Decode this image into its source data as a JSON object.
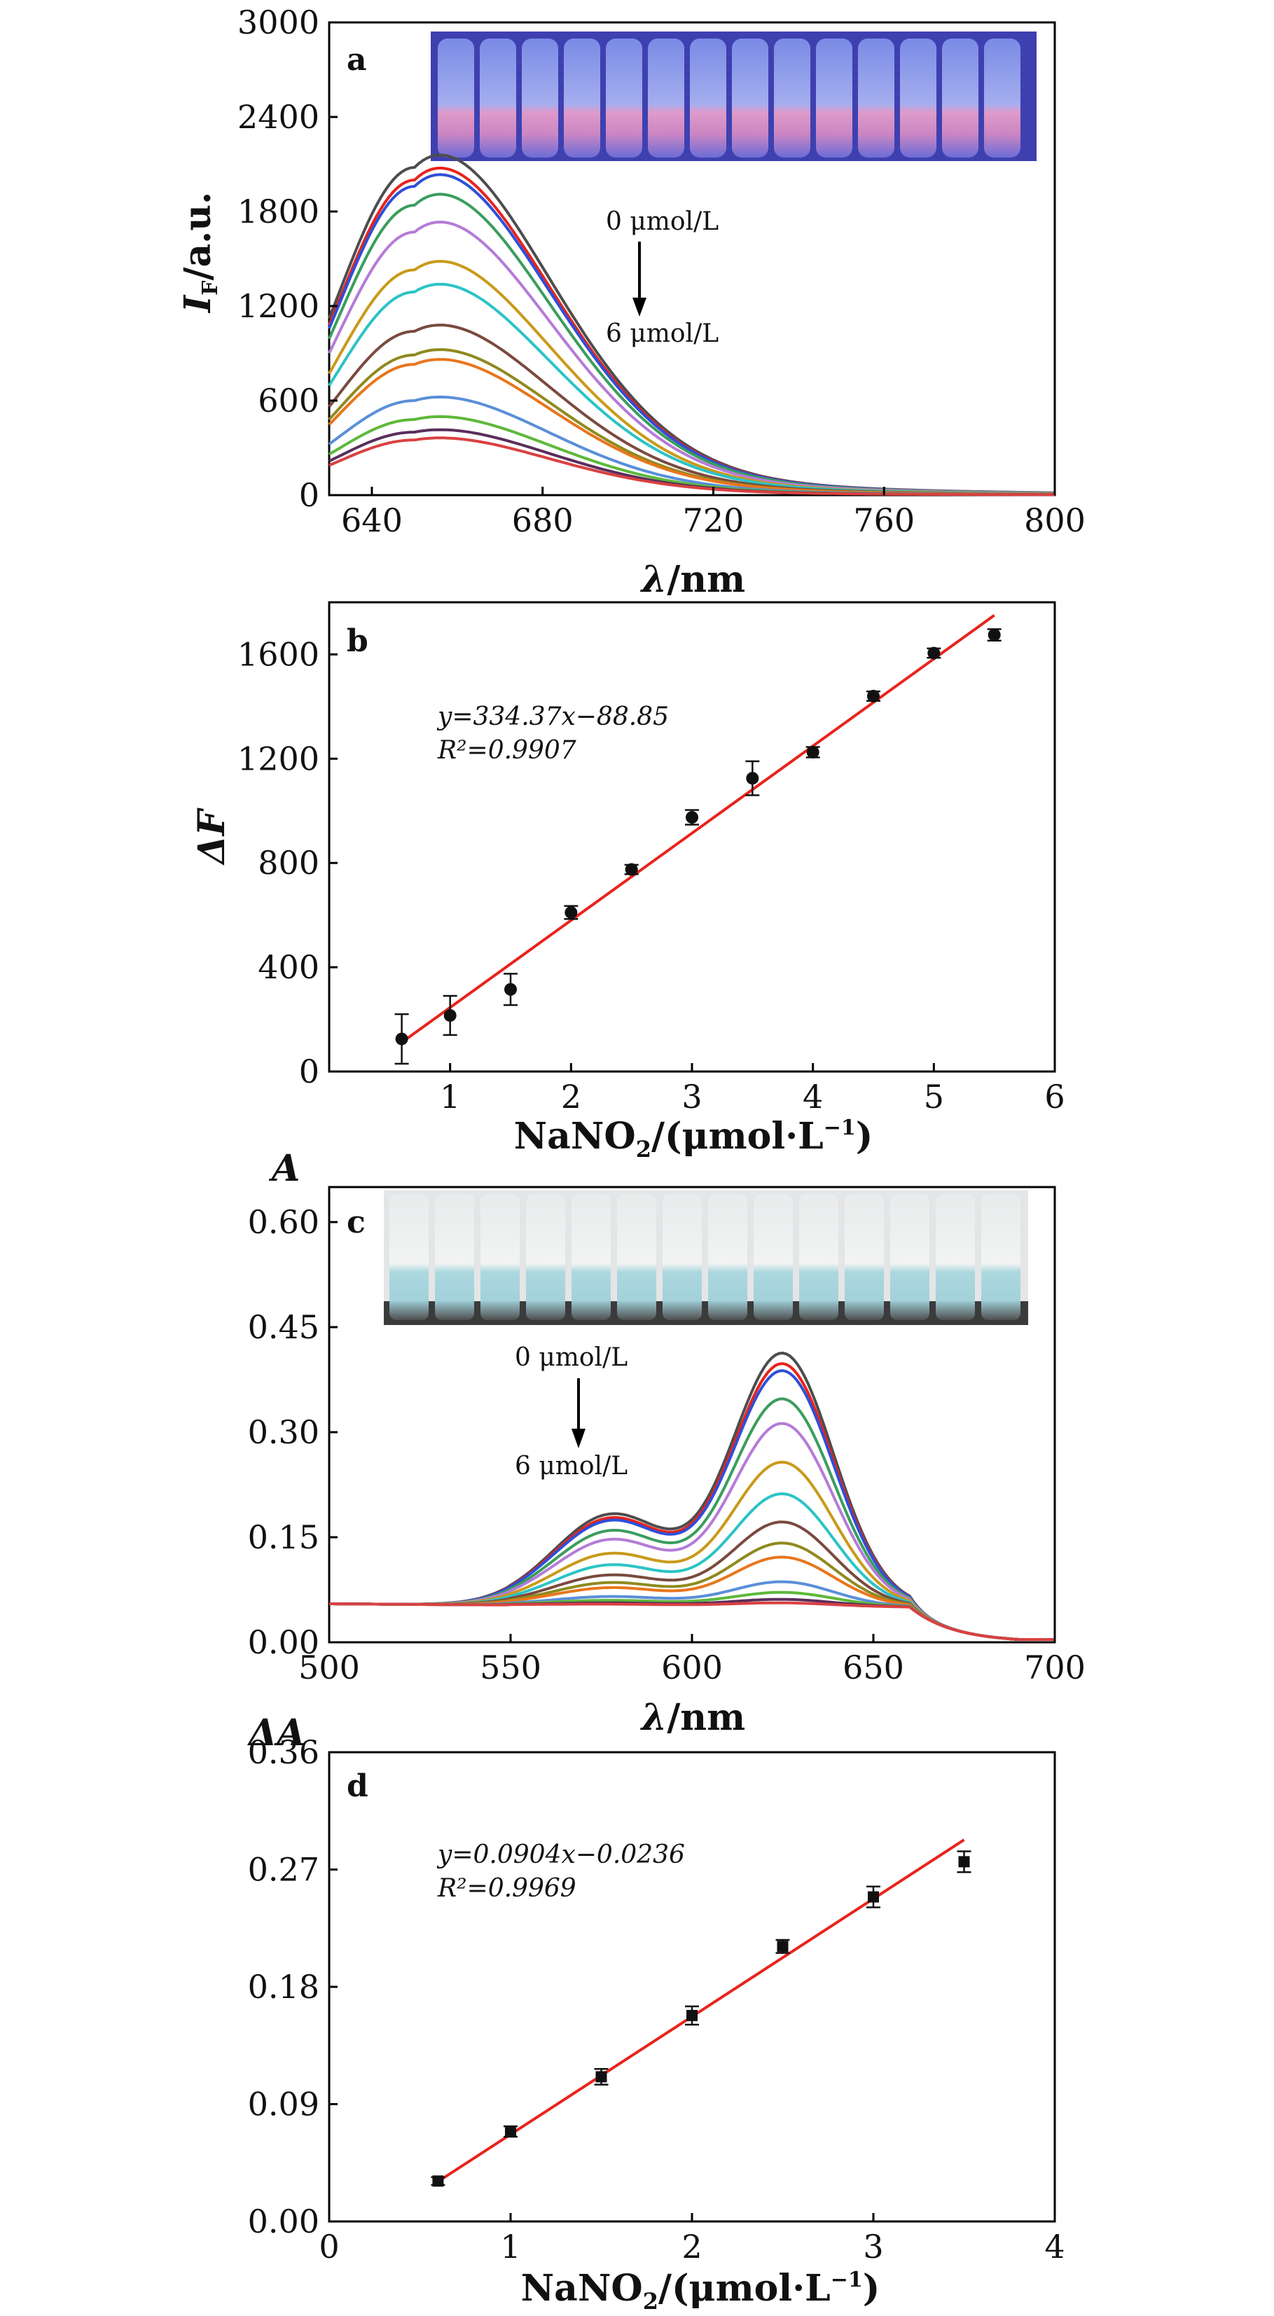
{
  "figure": {
    "colors": {
      "axis": "#000000",
      "fit_line": "#e8231c",
      "marker": "#111111",
      "series_palette": [
        "#4d4d4d",
        "#e8231c",
        "#2e4fd8",
        "#3a9d5d",
        "#b57bd8",
        "#c99a1a",
        "#2cc3c6",
        "#7a4a3e",
        "#8f8a1e",
        "#e8761c",
        "#5a8fd8",
        "#5eb83a",
        "#5a2e5c",
        "#d94141"
      ]
    }
  },
  "chart_data": [
    {
      "panel": "a",
      "type": "line",
      "xlabel_main": "λ",
      "xlabel_unit": "/nm",
      "ylabel_main": "I",
      "ylabel_sub": "F",
      "ylabel_unit": "/a.u.",
      "xlim": [
        630,
        800
      ],
      "ylim": [
        0,
        3000
      ],
      "x_ticks": [
        "640",
        "680",
        "720",
        "760",
        "800"
      ],
      "y_ticks": [
        "0",
        "600",
        "1200",
        "1800",
        "2400",
        "3000"
      ],
      "annotation_top": "0 μmol/L",
      "annotation_bottom": "6 μmol/L",
      "inset": "photo-fluorescent-vials",
      "peak_wavelength": 650,
      "series_peak_values": [
        2080,
        2000,
        1960,
        1840,
        1670,
        1430,
        1290,
        1040,
        890,
        830,
        600,
        480,
        400,
        350
      ],
      "series_colors": [
        "#4d4d4d",
        "#e8231c",
        "#2e4fd8",
        "#3a9d5d",
        "#b57bd8",
        "#c99a1a",
        "#2cc3c6",
        "#7a4a3e",
        "#8f8a1e",
        "#e8761c",
        "#5a8fd8",
        "#5eb83a",
        "#5a2e5c",
        "#d94141"
      ]
    },
    {
      "panel": "b",
      "type": "scatter",
      "xlabel_main": "NaNO",
      "xlabel_sub": "2",
      "xlabel_unit": "/(μmol·L",
      "xlabel_sup": "−1",
      "xlabel_end": ")",
      "ylabel": "ΔF",
      "xlim": [
        0,
        6
      ],
      "ylim": [
        0,
        1800
      ],
      "x_ticks": [
        "1",
        "2",
        "3",
        "4",
        "5",
        "6"
      ],
      "y_ticks": [
        "0",
        "400",
        "800",
        "1200",
        "1600"
      ],
      "x": [
        0.6,
        1.0,
        1.5,
        2.0,
        2.5,
        3.0,
        3.5,
        4.0,
        4.5,
        5.0,
        5.5
      ],
      "y": [
        125,
        215,
        315,
        610,
        775,
        975,
        1125,
        1225,
        1440,
        1605,
        1675
      ],
      "error": [
        95,
        75,
        60,
        25,
        18,
        28,
        65,
        20,
        18,
        18,
        22
      ],
      "fit": {
        "slope": 334.37,
        "intercept": -88.85,
        "x_range": [
          0.6,
          5.5
        ]
      },
      "equation": "y=334.37x−88.85",
      "r_squared": "R²=0.9907"
    },
    {
      "panel": "c",
      "type": "line",
      "ylabel": "A",
      "xlabel_main": "λ",
      "xlabel_unit": "/nm",
      "xlim": [
        500,
        700
      ],
      "ylim": [
        0,
        0.65
      ],
      "x_ticks": [
        "500",
        "550",
        "600",
        "650",
        "700"
      ],
      "y_ticks": [
        "0.00",
        "0.15",
        "0.30",
        "0.45",
        "0.60"
      ],
      "annotation_top": "0 μmol/L",
      "annotation_bottom": "6 μmol/L",
      "inset": "photo-blue-vials",
      "series_peak_values": [
        0.405,
        0.39,
        0.38,
        0.34,
        0.305,
        0.25,
        0.205,
        0.165,
        0.135,
        0.115,
        0.08,
        0.065,
        0.055,
        0.05
      ],
      "series_colors": [
        "#4d4d4d",
        "#e8231c",
        "#2e4fd8",
        "#3a9d5d",
        "#b57bd8",
        "#c99a1a",
        "#2cc3c6",
        "#7a4a3e",
        "#8f8a1e",
        "#e8761c",
        "#5a8fd8",
        "#5eb83a",
        "#5a2e5c",
        "#d94141"
      ]
    },
    {
      "panel": "d",
      "type": "scatter",
      "ylabel": "ΔA",
      "xlabel_main": "NaNO",
      "xlabel_sub": "2",
      "xlabel_unit": "/(μmol·L",
      "xlabel_sup": "−1",
      "xlabel_end": ")",
      "xlim": [
        0,
        4
      ],
      "ylim": [
        0,
        0.36
      ],
      "x_ticks": [
        "0",
        "1",
        "2",
        "3",
        "4"
      ],
      "y_ticks": [
        "0.00",
        "0.09",
        "0.18",
        "0.27",
        "0.36"
      ],
      "x": [
        0.6,
        1.0,
        1.5,
        2.0,
        2.5,
        3.0,
        3.5
      ],
      "y": [
        0.031,
        0.069,
        0.111,
        0.158,
        0.211,
        0.249,
        0.276
      ],
      "error": [
        0.003,
        0.004,
        0.006,
        0.007,
        0.005,
        0.008,
        0.008
      ],
      "fit": {
        "slope": 0.0904,
        "intercept": -0.0236,
        "x_range": [
          0.6,
          3.5
        ]
      },
      "equation": "y=0.0904x−0.0236",
      "r_squared": "R²=0.9969"
    }
  ]
}
